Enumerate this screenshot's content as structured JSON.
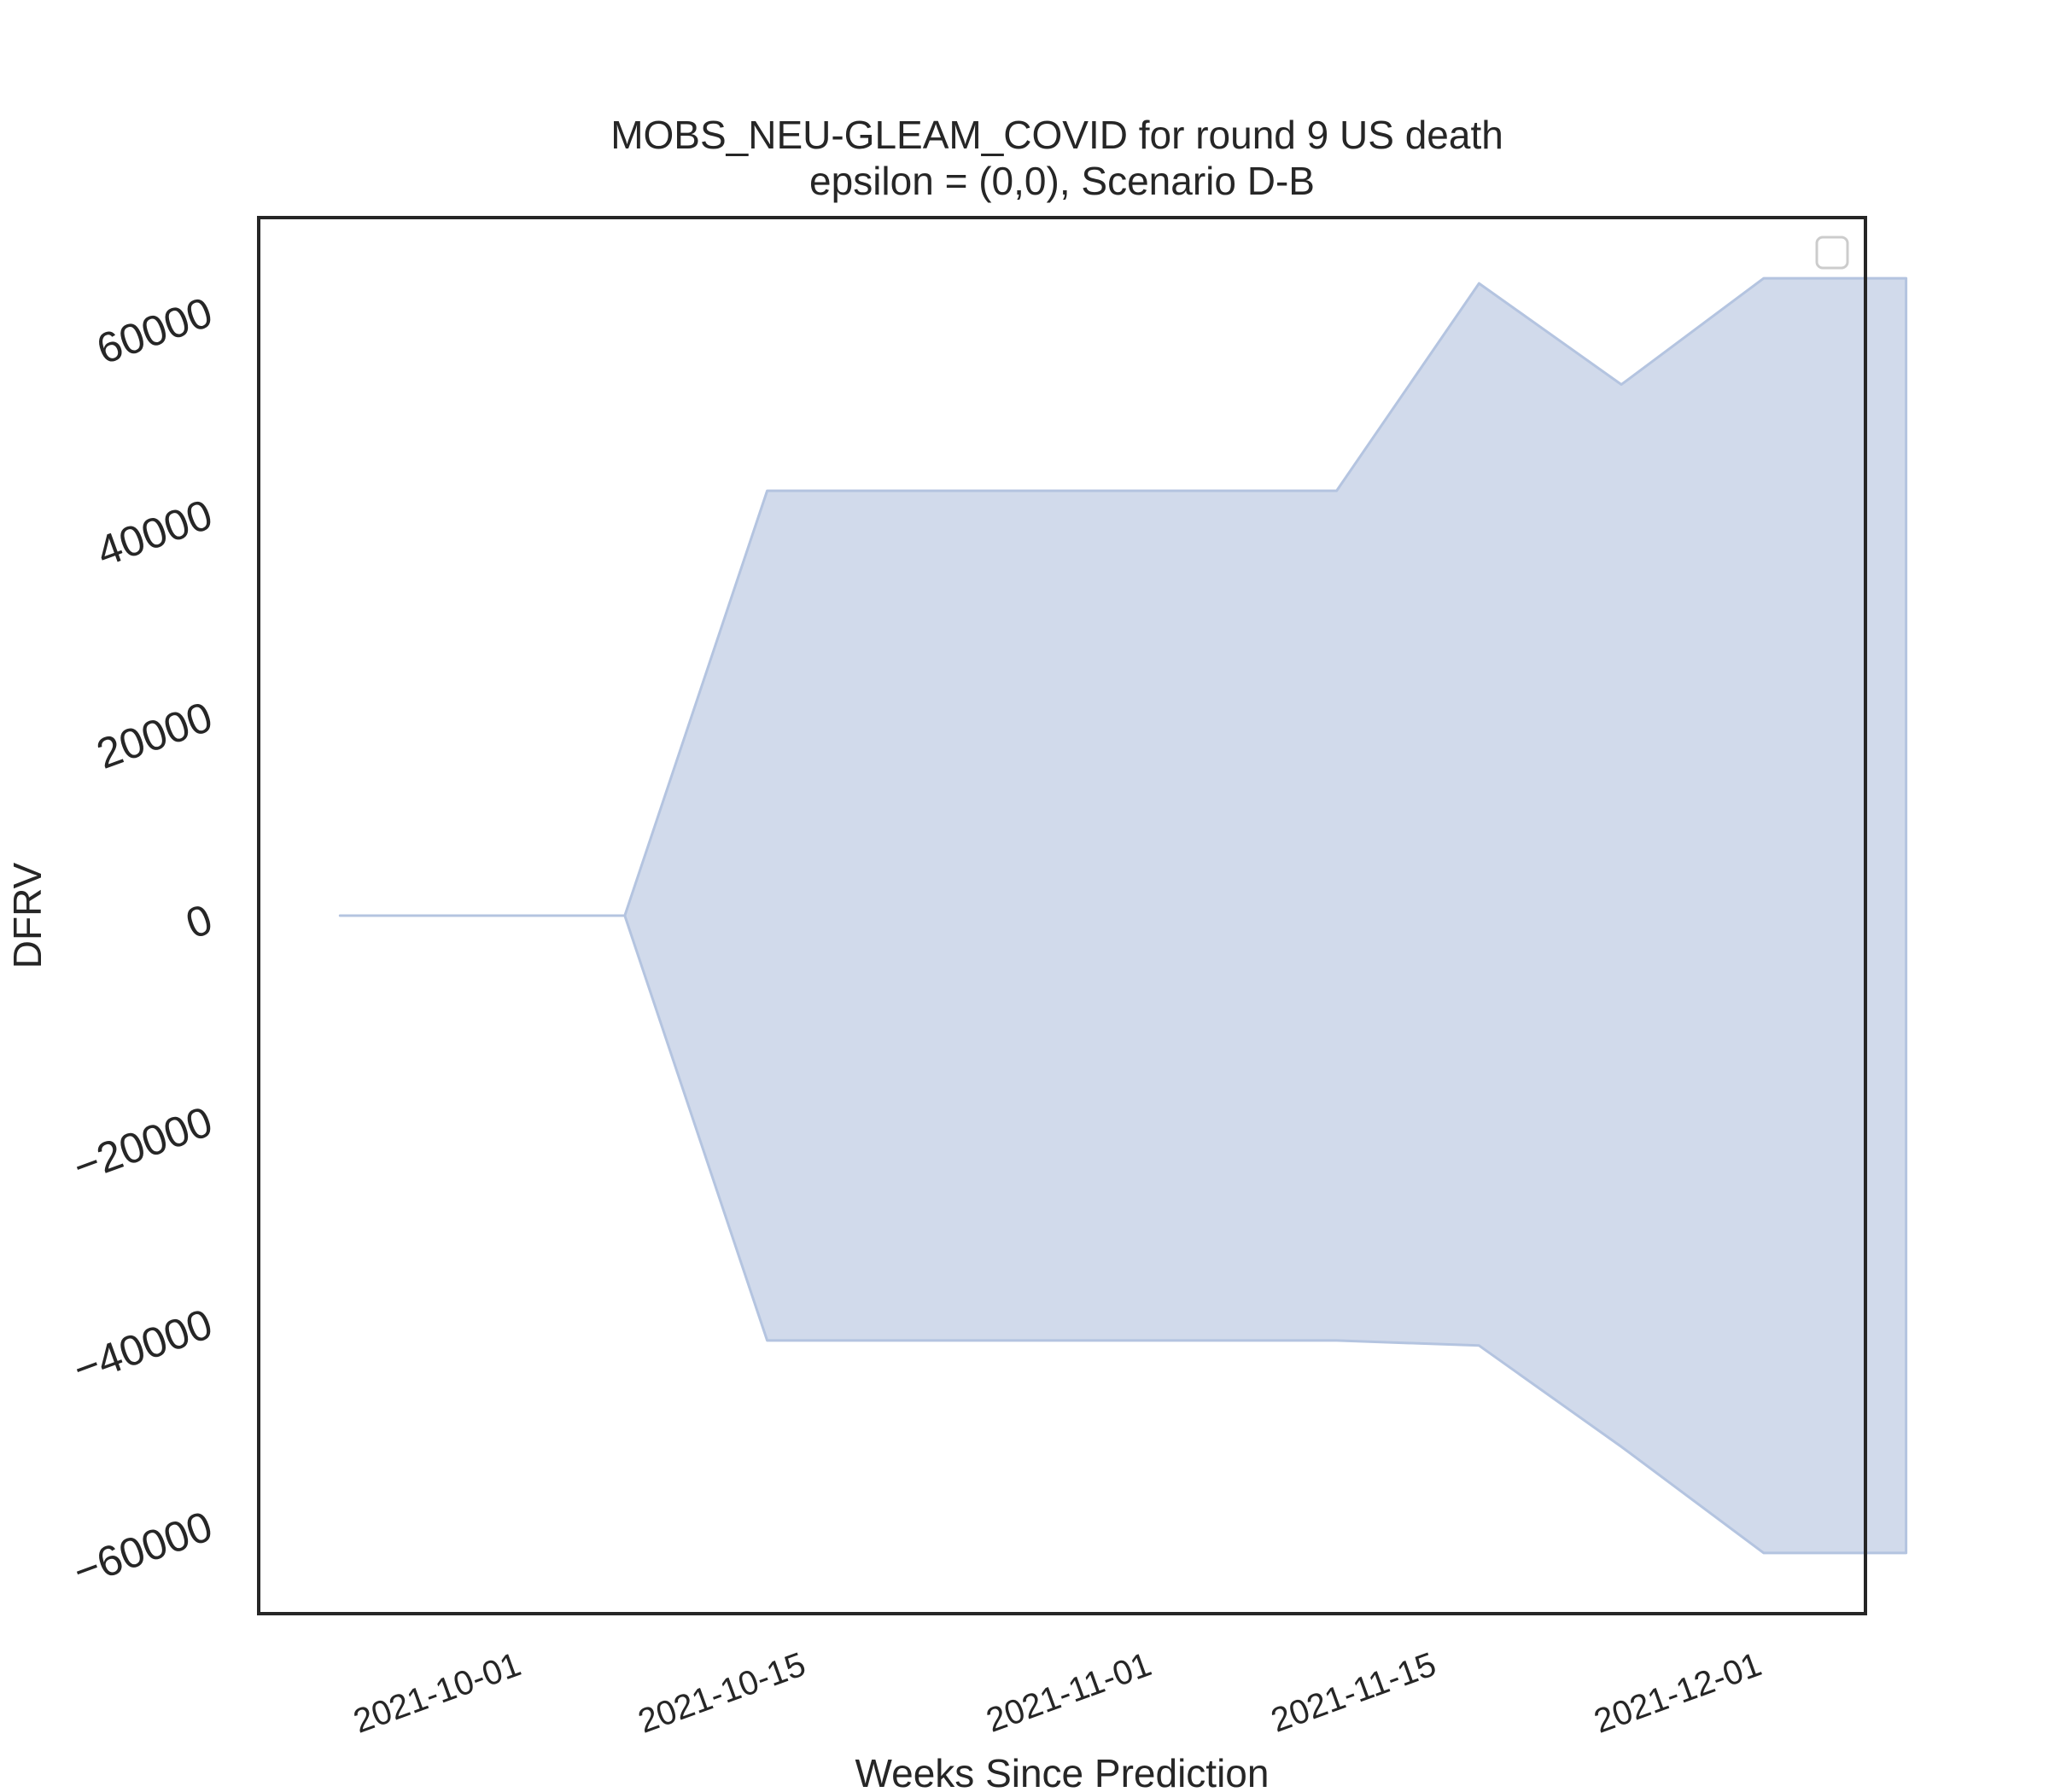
{
  "chart_data": {
    "type": "area",
    "title": "MOBS_NEU-GLEAM_COVID for round 9 US death",
    "subtitle": "epsilon = (0,0), Scenario D-B",
    "xlabel": "Weeks Since Prediction",
    "ylabel": "DFRV",
    "x_tick_labels": [
      "2021-10-01",
      "2021-10-15",
      "2021-11-01",
      "2021-11-15",
      "2021-12-01"
    ],
    "y_tick_labels": [
      "60000",
      "40000",
      "20000",
      "0",
      "−20000",
      "−40000",
      "−60000"
    ],
    "y_tick_values": [
      60000,
      40000,
      20000,
      0,
      -20000,
      -40000,
      -60000
    ],
    "xlim": [
      "2021-09-20",
      "2021-12-08"
    ],
    "ylim": [
      -69000,
      69000
    ],
    "grid": false,
    "legend": "upper right (empty)",
    "fill_color": "#d1daeb",
    "edge_color": "#b4c4e0",
    "x": [
      "2021-09-24",
      "2021-10-08",
      "2021-10-15",
      "2021-11-12",
      "2021-11-19",
      "2021-11-26",
      "2021-12-03",
      "2021-12-10"
    ],
    "upper": [
      0,
      0,
      42000,
      42000,
      62500,
      52500,
      63000,
      63000
    ],
    "lower": [
      0,
      0,
      -42000,
      -42000,
      -42500,
      -52500,
      -63000,
      -63000
    ]
  }
}
